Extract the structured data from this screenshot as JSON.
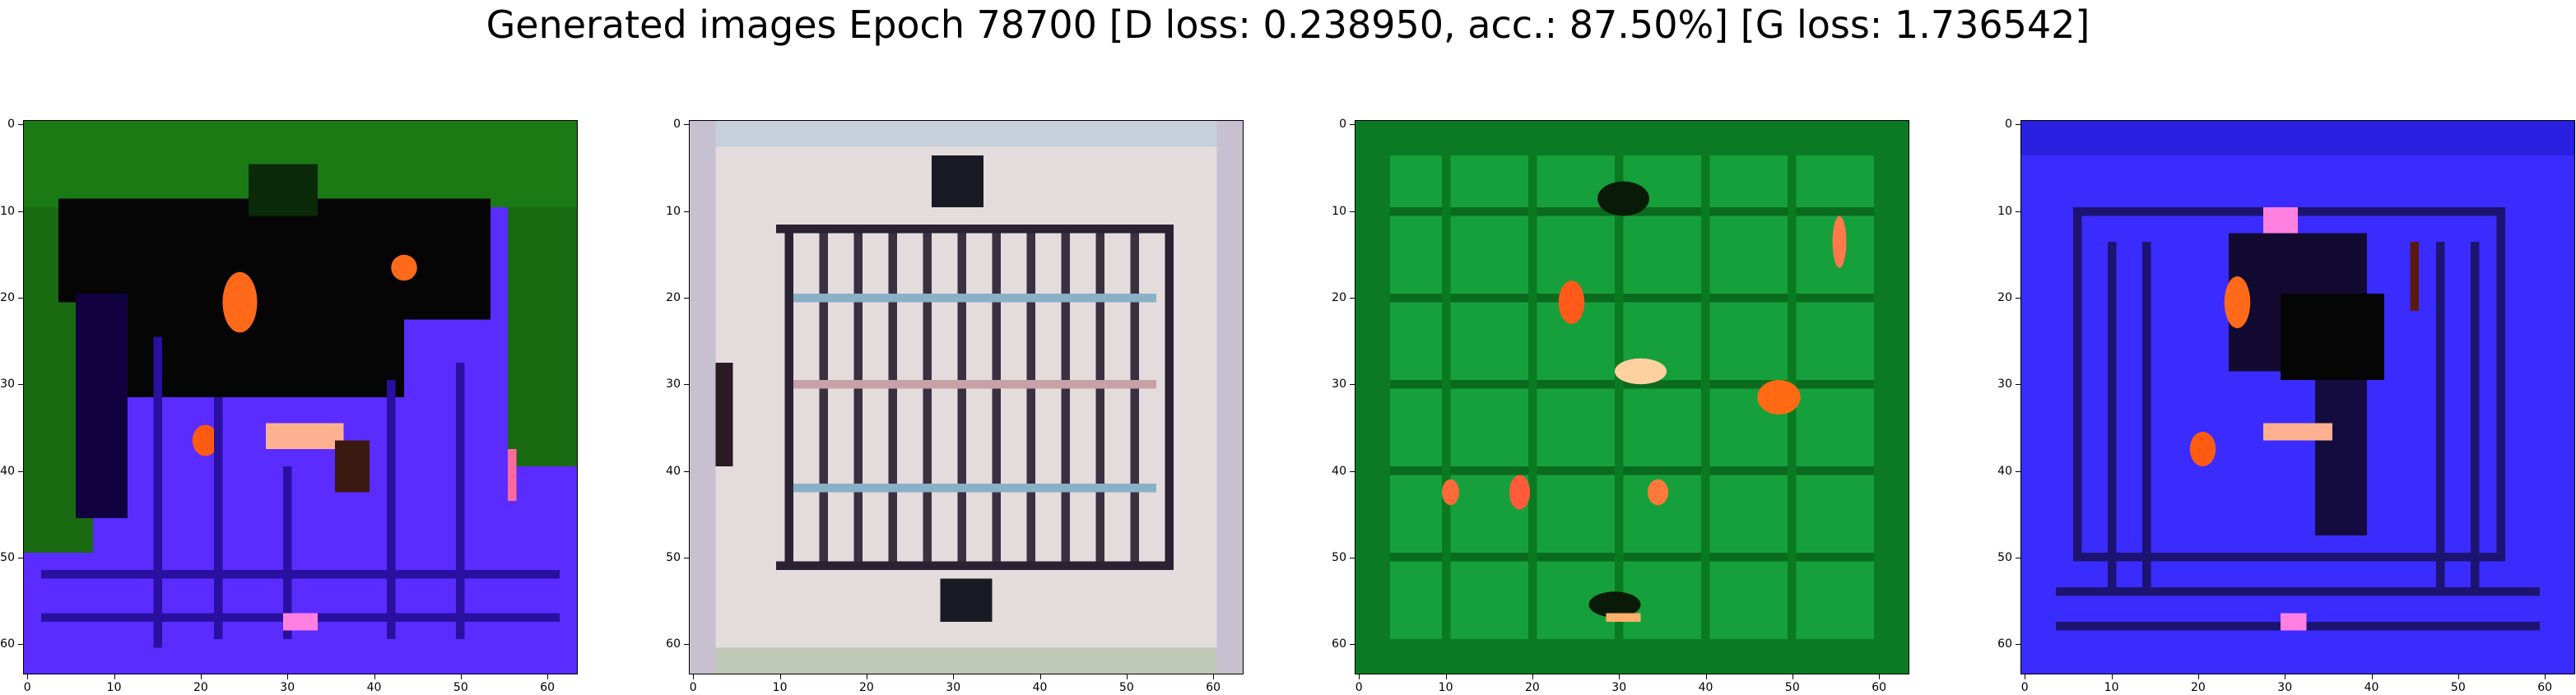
{
  "title": "Generated images Epoch 78700 [D loss: 0.238950, acc.: 87.50%] [G loss: 1.736542]",
  "axes": {
    "x_ticks": [
      "0",
      "10",
      "20",
      "30",
      "40",
      "50",
      "60"
    ],
    "y_ticks": [
      "0",
      "10",
      "20",
      "30",
      "40",
      "50",
      "60"
    ]
  },
  "images": [
    {
      "name": "generated-image-1",
      "dominant_colors": [
        "#1a7a14",
        "#5a2cff",
        "#050505",
        "#ff6a1a"
      ]
    },
    {
      "name": "generated-image-2",
      "dominant_colors": [
        "#e4dcdc",
        "#2a2233",
        "#c7d0da",
        "#8ab0c8"
      ]
    },
    {
      "name": "generated-image-3",
      "dominant_colors": [
        "#16a03c",
        "#0c7a24",
        "#ffd0a0",
        "#ff5a1a"
      ]
    },
    {
      "name": "generated-image-4",
      "dominant_colors": [
        "#3a2cff",
        "#1c1470",
        "#050505",
        "#ff6a1a"
      ]
    }
  ]
}
